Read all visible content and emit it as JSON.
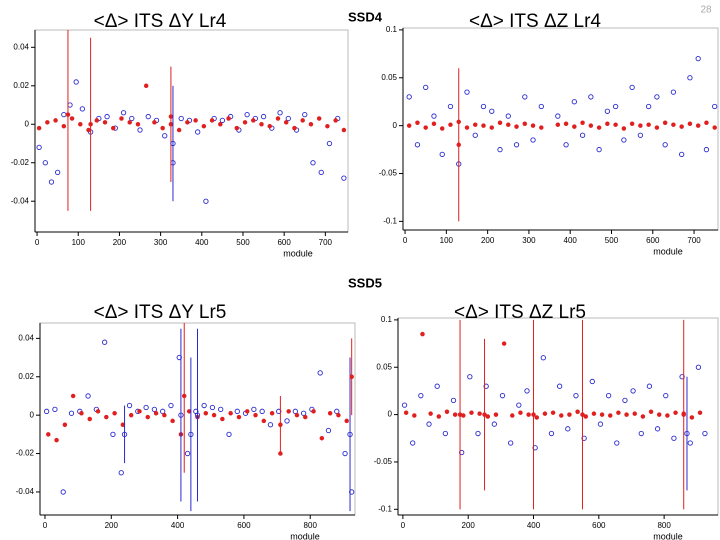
{
  "slide": {
    "page_number": 28,
    "sections": [
      "SSD4",
      "SSD5"
    ]
  },
  "chart_data": [
    {
      "type": "scatter",
      "title": "<Δ> ITS ΔY Lr4",
      "x_label": "module",
      "xlim": [
        -5,
        755
      ],
      "xticks": [
        0,
        100,
        200,
        300,
        400,
        500,
        600,
        700
      ],
      "ylim": [
        -0.056,
        0.049
      ],
      "yticks": [
        -0.04,
        -0.02,
        0,
        0.02,
        0.04
      ],
      "series": [
        {
          "color": "#2a2ad0",
          "marker": "open",
          "x": [
            5,
            20,
            35,
            50,
            65,
            80,
            95,
            110,
            130,
            150,
            170,
            190,
            210,
            230,
            250,
            270,
            290,
            310,
            330,
            350,
            370,
            390,
            410,
            430,
            450,
            470,
            490,
            510,
            530,
            550,
            570,
            590,
            610,
            630,
            650,
            670,
            690,
            710,
            730,
            745
          ],
          "values": [
            -0.012,
            -0.02,
            -0.03,
            -0.025,
            0.005,
            0.01,
            0.022,
            0.008,
            -0.004,
            0.003,
            0.004,
            -0.002,
            0.006,
            0.003,
            -0.003,
            0.004,
            0.002,
            -0.006,
            -0.02,
            0.003,
            0.002,
            -0.004,
            -0.04,
            0.003,
            0.002,
            0.004,
            -0.003,
            0.005,
            0.003,
            0.004,
            -0.002,
            0.006,
            0.003,
            -0.003,
            0.005,
            -0.02,
            -0.025,
            -0.01,
            0.003,
            -0.028
          ]
        },
        {
          "color": "#e02020",
          "marker": "filled",
          "x": [
            5,
            25,
            45,
            65,
            85,
            105,
            125,
            145,
            165,
            185,
            205,
            225,
            245,
            265,
            285,
            305,
            325,
            345,
            365,
            385,
            405,
            425,
            445,
            465,
            485,
            505,
            525,
            545,
            565,
            585,
            605,
            625,
            645,
            665,
            685,
            705,
            725,
            745
          ],
          "values": [
            -0.002,
            0.001,
            0.002,
            -0.001,
            0.003,
            0,
            -0.003,
            0.002,
            0.001,
            -0.002,
            0.003,
            0.001,
            0,
            0.02,
            0.001,
            -0.002,
            0.004,
            -0.003,
            0.001,
            0.002,
            -0.001,
            0.002,
            0,
            0.003,
            -0.002,
            0.001,
            0.002,
            0,
            -0.001,
            0.003,
            0.001,
            -0.002,
            0.002,
            0,
            0.003,
            -0.001,
            0.002,
            -0.003
          ]
        },
        {
          "color": "#e02020",
          "marker": "filled",
          "x": [
            75,
            130,
            325
          ],
          "values": [
            0.005,
            0,
            0
          ],
          "errors": [
            0.05,
            0.045,
            0.03
          ]
        },
        {
          "color": "#2a2ad0",
          "marker": "open",
          "x": [
            330
          ],
          "values": [
            -0.01
          ],
          "errors": [
            0.03
          ]
        }
      ]
    },
    {
      "type": "scatter",
      "title": "<Δ> ITS ΔZ Lr4",
      "x_label": "module",
      "xlim": [
        -5,
        758
      ],
      "xticks": [
        0,
        100,
        200,
        300,
        400,
        500,
        600,
        700
      ],
      "ylim": [
        -0.109,
        0.102
      ],
      "yticks": [
        -0.1,
        -0.05,
        0,
        0.05,
        0.1
      ],
      "series": [
        {
          "color": "#2a2ad0",
          "marker": "open",
          "x": [
            10,
            30,
            50,
            70,
            90,
            110,
            130,
            150,
            170,
            190,
            210,
            230,
            250,
            270,
            290,
            310,
            330,
            370,
            390,
            410,
            430,
            450,
            470,
            490,
            510,
            530,
            550,
            570,
            590,
            610,
            630,
            650,
            670,
            690,
            710,
            730,
            750
          ],
          "values": [
            0.03,
            -0.02,
            0.04,
            0.01,
            -0.03,
            0.02,
            -0.04,
            0.035,
            -0.01,
            0.02,
            0.015,
            -0.025,
            0.01,
            -0.02,
            0.03,
            -0.015,
            0.02,
            0.01,
            -0.02,
            0.025,
            -0.01,
            0.03,
            -0.025,
            0.015,
            0.02,
            -0.015,
            0.04,
            -0.01,
            0.02,
            0.03,
            -0.02,
            0.035,
            -0.03,
            0.05,
            0.07,
            -0.025,
            0.02
          ]
        },
        {
          "color": "#e02020",
          "marker": "filled",
          "x": [
            10,
            30,
            50,
            70,
            90,
            110,
            130,
            150,
            170,
            190,
            210,
            230,
            250,
            270,
            290,
            310,
            330,
            370,
            390,
            410,
            430,
            450,
            470,
            490,
            510,
            530,
            550,
            570,
            590,
            610,
            630,
            650,
            670,
            690,
            710,
            730,
            750
          ],
          "values": [
            0,
            0.003,
            -0.002,
            0.002,
            -0.003,
            0.001,
            0.004,
            -0.002,
            0.001,
            0,
            -0.002,
            0.003,
            0.001,
            -0.001,
            0.002,
            0,
            -0.002,
            0.001,
            0.002,
            -0.001,
            0.003,
            0,
            -0.002,
            0.002,
            0.001,
            -0.003,
            0.002,
            0,
            0.001,
            -0.002,
            0.003,
            0.001,
            -0.001,
            0.002,
            0,
            0.003,
            -0.002
          ]
        },
        {
          "color": "#e02020",
          "marker": "filled",
          "x": [
            130
          ],
          "values": [
            -0.02
          ],
          "errors": [
            0.08
          ]
        }
      ]
    },
    {
      "type": "scatter",
      "title": "<Δ> ITS ΔY Lr5",
      "x_label": "module",
      "xlim": [
        -15,
        935
      ],
      "xticks": [
        0,
        200,
        400,
        600,
        800
      ],
      "ylim": [
        -0.052,
        0.048
      ],
      "yticks": [
        -0.04,
        -0.02,
        0,
        0.02,
        0.04
      ],
      "series": [
        {
          "color": "#2a2ad0",
          "marker": "open",
          "x": [
            5,
            30,
            55,
            80,
            105,
            130,
            155,
            180,
            205,
            230,
            255,
            280,
            305,
            330,
            355,
            380,
            405,
            430,
            455,
            480,
            505,
            530,
            555,
            580,
            605,
            630,
            655,
            680,
            705,
            730,
            755,
            780,
            805,
            830,
            855,
            880,
            905,
            925
          ],
          "values": [
            0.002,
            0.003,
            -0.04,
            0.001,
            0.002,
            0.01,
            0.003,
            0.038,
            -0.01,
            -0.03,
            0.005,
            0.002,
            0.004,
            0.003,
            0.002,
            0.005,
            0.03,
            -0.02,
            0.002,
            0.005,
            0.004,
            0.003,
            -0.01,
            0.002,
            0.001,
            0.003,
            0.002,
            -0.005,
            0.002,
            -0.003,
            0.002,
            0.001,
            0.003,
            0.022,
            -0.008,
            0.002,
            -0.02,
            -0.04
          ]
        },
        {
          "color": "#e02020",
          "marker": "filled",
          "x": [
            10,
            35,
            60,
            85,
            110,
            135,
            160,
            185,
            210,
            235,
            260,
            285,
            310,
            335,
            360,
            385,
            410,
            435,
            460,
            485,
            510,
            535,
            560,
            585,
            610,
            635,
            660,
            685,
            710,
            735,
            760,
            785,
            810,
            835,
            860,
            885,
            910
          ],
          "values": [
            -0.01,
            -0.013,
            -0.005,
            0.01,
            0.001,
            -0.002,
            0.002,
            -0.001,
            0.001,
            -0.005,
            0,
            0.002,
            -0.001,
            0.001,
            0,
            -0.003,
            -0.01,
            0.002,
            -0.001,
            0.001,
            0,
            -0.002,
            0.001,
            -0.001,
            0.002,
            0,
            -0.003,
            0.001,
            -0.02,
            0.002,
            0,
            -0.001,
            0.002,
            -0.012,
            0.001,
            0,
            -0.003
          ]
        },
        {
          "color": "#2a2ad0",
          "marker": "open",
          "x": [
            240,
            410,
            440,
            460,
            920
          ],
          "values": [
            -0.01,
            0,
            -0.01,
            0,
            -0.01
          ],
          "errors": [
            0.015,
            0.045,
            0.04,
            0.045,
            0.04
          ]
        },
        {
          "color": "#e02020",
          "marker": "filled",
          "x": [
            420,
            710,
            925
          ],
          "values": [
            0.01,
            -0.005,
            0.02
          ],
          "errors": [
            0.04,
            0.015,
            0.02
          ]
        }
      ]
    },
    {
      "type": "scatter",
      "title": "<Δ> ITS ΔZ Lr5",
      "x_label": "module",
      "xlim": [
        -15,
        965
      ],
      "xticks": [
        0,
        200,
        400,
        600,
        800
      ],
      "ylim": [
        -0.106,
        0.102
      ],
      "yticks": [
        -0.1,
        -0.05,
        0,
        0.05,
        0.1
      ],
      "series": [
        {
          "color": "#2a2ad0",
          "marker": "open",
          "x": [
            5,
            30,
            55,
            80,
            105,
            130,
            155,
            180,
            205,
            230,
            255,
            280,
            305,
            330,
            355,
            380,
            405,
            430,
            455,
            480,
            505,
            530,
            555,
            580,
            605,
            630,
            655,
            680,
            705,
            730,
            755,
            780,
            805,
            830,
            855,
            880,
            905,
            925
          ],
          "values": [
            0.01,
            -0.03,
            0.02,
            -0.01,
            0.03,
            -0.02,
            0.015,
            -0.04,
            0.04,
            -0.02,
            0.03,
            -0.01,
            0.02,
            -0.03,
            0.01,
            0.025,
            -0.035,
            0.06,
            -0.02,
            0.03,
            -0.015,
            0.02,
            -0.025,
            0.035,
            -0.01,
            0.02,
            -0.03,
            0.015,
            0.025,
            -0.02,
            0.03,
            -0.015,
            0.02,
            -0.025,
            0.04,
            -0.03,
            0.05,
            -0.02
          ]
        },
        {
          "color": "#e02020",
          "marker": "filled",
          "x": [
            10,
            35,
            60,
            85,
            110,
            135,
            160,
            185,
            210,
            235,
            260,
            285,
            310,
            335,
            360,
            385,
            410,
            435,
            460,
            485,
            510,
            535,
            560,
            585,
            610,
            635,
            660,
            685,
            710,
            735,
            760,
            785,
            810,
            835,
            860,
            885,
            910
          ],
          "values": [
            0.002,
            -0.001,
            0.085,
            0.001,
            -0.002,
            0.003,
            0,
            -0.001,
            0.002,
            0.001,
            -0.002,
            0,
            0.075,
            -0.001,
            0.002,
            0,
            -0.003,
            0.001,
            0.002,
            -0.001,
            0,
            0.003,
            -0.002,
            0.001,
            0,
            -0.001,
            0.002,
            0,
            0.001,
            -0.002,
            0.003,
            0,
            -0.001,
            0.002,
            0.001,
            -0.003,
            0.002
          ]
        },
        {
          "color": "#e02020",
          "marker": "filled",
          "x": [
            175,
            250,
            400,
            550,
            860
          ],
          "values": [
            0,
            0,
            0,
            0,
            0
          ],
          "errors": [
            0.1,
            0.08,
            0.1,
            0.1,
            0.1
          ]
        },
        {
          "color": "#2a2ad0",
          "marker": "open",
          "x": [
            870
          ],
          "values": [
            -0.02
          ],
          "errors": [
            0.06
          ]
        }
      ]
    }
  ]
}
